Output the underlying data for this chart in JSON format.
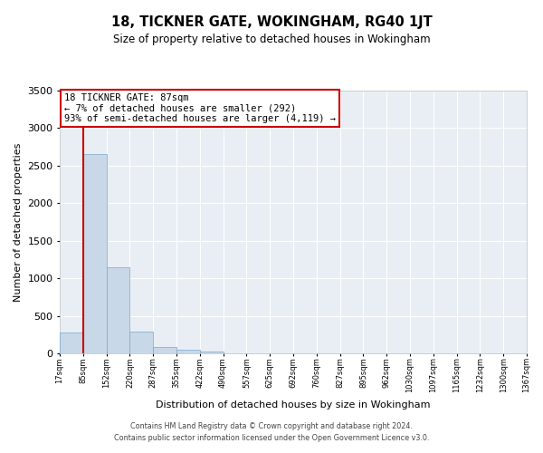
{
  "title": "18, TICKNER GATE, WOKINGHAM, RG40 1JT",
  "subtitle": "Size of property relative to detached houses in Wokingham",
  "xlabel": "Distribution of detached houses by size in Wokingham",
  "ylabel": "Number of detached properties",
  "footer_line1": "Contains HM Land Registry data © Crown copyright and database right 2024.",
  "footer_line2": "Contains public sector information licensed under the Open Government Licence v3.0.",
  "bar_values": [
    280,
    2650,
    1150,
    290,
    90,
    50,
    30,
    0,
    0,
    0,
    0,
    0,
    0,
    0,
    0,
    0,
    0,
    0,
    0,
    0
  ],
  "x_labels": [
    "17sqm",
    "85sqm",
    "152sqm",
    "220sqm",
    "287sqm",
    "355sqm",
    "422sqm",
    "490sqm",
    "557sqm",
    "625sqm",
    "692sqm",
    "760sqm",
    "827sqm",
    "895sqm",
    "962sqm",
    "1030sqm",
    "1097sqm",
    "1165sqm",
    "1232sqm",
    "1300sqm",
    "1367sqm"
  ],
  "bar_color": "#c8d8e8",
  "bar_edgecolor": "#7aa8c8",
  "bg_color": "#e8eef4",
  "annotation_line1": "18 TICKNER GATE: 87sqm",
  "annotation_line2": "← 7% of detached houses are smaller (292)",
  "annotation_line3": "93% of semi-detached houses are larger (4,119) →",
  "annotation_box_edgecolor": "#cc0000",
  "vline_color": "#cc0000",
  "ylim": [
    0,
    3500
  ],
  "yticks": [
    0,
    500,
    1000,
    1500,
    2000,
    2500,
    3000,
    3500
  ]
}
